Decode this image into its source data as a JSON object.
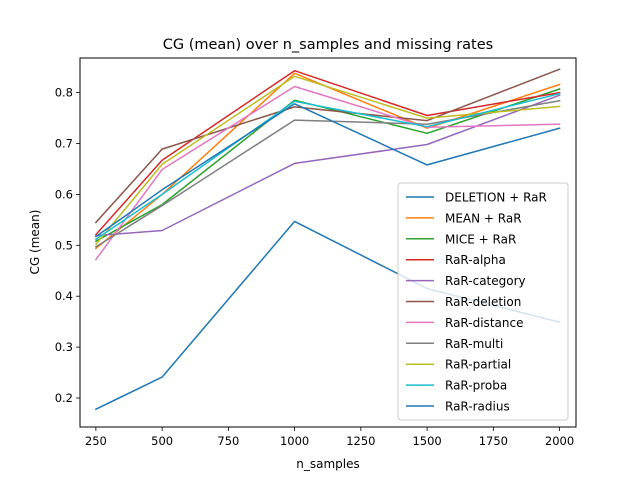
{
  "chart_data": {
    "type": "line",
    "title": "CG (mean) over n_samples and missing rates",
    "xlabel": "n_samples",
    "ylabel": "CG (mean)",
    "xlim": [
      190,
      2062
    ],
    "ylim": [
      0.143,
      0.868
    ],
    "xticks": [
      250,
      500,
      750,
      1000,
      1250,
      1500,
      1750,
      2000
    ],
    "yticks": [
      0.2,
      0.3,
      0.4,
      0.5,
      0.6,
      0.7,
      0.8
    ],
    "x": [
      250,
      500,
      1000,
      1500,
      2000
    ],
    "grid": false,
    "legend_position": "lower-right",
    "series": [
      {
        "name": "DELETION + RaR",
        "color": "#1f77b4",
        "values": [
          0.178,
          0.241,
          0.547,
          0.415,
          0.349
        ]
      },
      {
        "name": "MEAN + RaR",
        "color": "#ff7f0e",
        "values": [
          0.494,
          0.6,
          0.838,
          0.73,
          0.816
        ]
      },
      {
        "name": "MICE + RaR",
        "color": "#2ca02c",
        "values": [
          0.508,
          0.58,
          0.785,
          0.72,
          0.807
        ]
      },
      {
        "name": "RaR-alpha",
        "color": "#d62728",
        "values": [
          0.521,
          0.667,
          0.843,
          0.755,
          0.8
        ]
      },
      {
        "name": "RaR-category",
        "color": "#9467bd",
        "values": [
          0.519,
          0.529,
          0.661,
          0.698,
          0.795
        ]
      },
      {
        "name": "RaR-deletion",
        "color": "#8c564b",
        "values": [
          0.545,
          0.689,
          0.772,
          0.745,
          0.846
        ]
      },
      {
        "name": "RaR-distance",
        "color": "#e377c2",
        "values": [
          0.472,
          0.649,
          0.812,
          0.732,
          0.738
        ]
      },
      {
        "name": "RaR-multi",
        "color": "#7f7f7f",
        "values": [
          0.497,
          0.578,
          0.746,
          0.738,
          0.784
        ]
      },
      {
        "name": "RaR-partial",
        "color": "#bcbd22",
        "values": [
          0.502,
          0.659,
          0.832,
          0.75,
          0.773
        ]
      },
      {
        "name": "RaR-proba",
        "color": "#17becf",
        "values": [
          0.512,
          0.6,
          0.783,
          0.733,
          0.798
        ]
      },
      {
        "name": "RaR-radius",
        "color": "#1f77b4",
        "values": [
          0.517,
          0.609,
          0.778,
          0.658,
          0.73
        ]
      }
    ]
  }
}
